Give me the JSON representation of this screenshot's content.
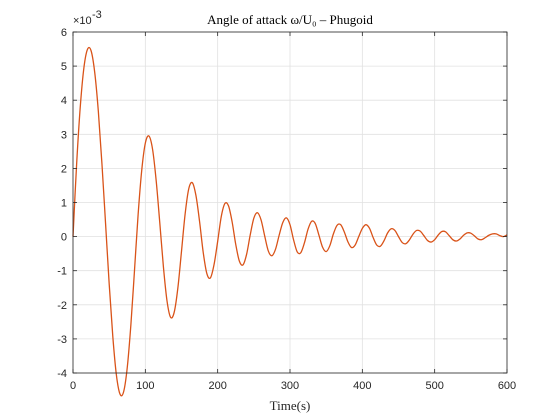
{
  "chart_data": {
    "type": "line",
    "title": "Angle of attack ω/U₀ – Phugoid",
    "xlabel": "Time(s)",
    "ylabel": "",
    "y_exponent_label": "×10",
    "y_exponent_value": "-3",
    "xlim": [
      0,
      600
    ],
    "ylim": [
      -4,
      6
    ],
    "x_ticks": [
      "0",
      "100",
      "200",
      "300",
      "400",
      "500",
      "600"
    ],
    "y_ticks": [
      "-4",
      "-3",
      "-2",
      "-1",
      "0",
      "1",
      "2",
      "3",
      "4",
      "5",
      "6"
    ],
    "grid": true,
    "line_color": "#D95319",
    "series": [
      {
        "x": [
          0,
          5,
          10,
          15,
          20,
          25,
          30,
          35,
          40,
          45,
          50,
          55,
          60,
          65,
          70,
          75,
          80,
          85,
          90,
          95,
          100,
          105,
          110,
          115,
          120,
          125,
          130,
          135,
          140,
          145,
          150,
          155,
          160,
          165,
          170,
          175,
          180,
          185,
          190,
          195,
          200,
          205,
          210,
          215,
          220,
          225,
          230,
          235,
          240,
          245,
          250,
          255,
          260,
          265,
          270,
          275,
          280,
          285,
          290,
          295,
          300,
          305,
          310,
          315,
          320,
          325,
          330,
          335,
          340,
          345,
          350,
          355,
          360,
          365,
          370,
          375,
          380,
          385,
          390,
          395,
          400,
          405,
          410,
          415,
          420,
          425,
          430,
          435,
          440,
          445,
          450,
          455,
          460,
          465,
          470,
          475,
          480,
          485,
          490,
          495,
          500,
          505,
          510,
          515,
          520,
          525,
          530,
          535,
          540,
          545,
          550,
          555,
          560,
          565,
          570,
          575,
          580,
          585,
          590,
          595,
          600
        ],
        "y": [
          0.0,
          2.12,
          3.79,
          4.94,
          5.49,
          5.45,
          4.82,
          3.68,
          2.14,
          0.39,
          -1.38,
          -2.92,
          -4.06,
          -4.62,
          -4.55,
          -3.84,
          -2.59,
          -1.0,
          0.64,
          1.94,
          2.74,
          2.95,
          2.56,
          1.64,
          0.4,
          -0.89,
          -1.89,
          -2.37,
          -2.21,
          -1.5,
          -0.43,
          0.66,
          1.4,
          1.58,
          1.2,
          0.44,
          -0.46,
          -1.08,
          -1.21,
          -0.82,
          -0.14,
          0.59,
          0.97,
          0.9,
          0.43,
          -0.23,
          -0.72,
          -0.83,
          -0.52,
          0.05,
          0.54,
          0.7,
          0.49,
          0.02,
          -0.42,
          -0.56,
          -0.37,
          0.04,
          0.41,
          0.55,
          0.35,
          -0.1,
          -0.45,
          -0.47,
          -0.18,
          0.22,
          0.45,
          0.38,
          0.04,
          -0.31,
          -0.44,
          -0.27,
          0.08,
          0.33,
          0.35,
          0.14,
          -0.15,
          -0.32,
          -0.25,
          0.0,
          0.24,
          0.35,
          0.24,
          -0.03,
          -0.25,
          -0.28,
          -0.12,
          0.11,
          0.23,
          0.18,
          0.0,
          -0.17,
          -0.21,
          -0.1,
          0.07,
          0.18,
          0.16,
          0.03,
          -0.11,
          -0.16,
          -0.09,
          0.05,
          0.15,
          0.14,
          0.03,
          -0.09,
          -0.13,
          -0.07,
          0.04,
          0.11,
          0.1,
          0.02,
          -0.07,
          -0.09,
          -0.03,
          0.04,
          0.08,
          0.08,
          0.03,
          0.0,
          0.05
        ]
      }
    ]
  }
}
